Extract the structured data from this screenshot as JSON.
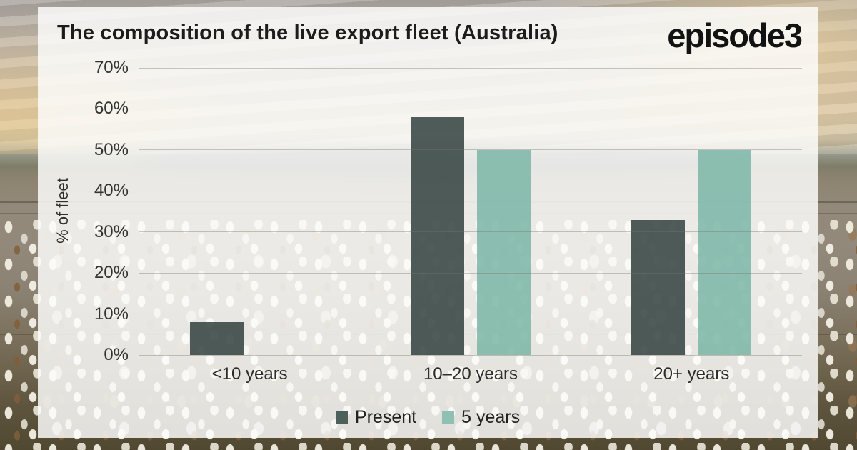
{
  "header": {
    "title": "The composition of the live export fleet (Australia)",
    "logo_text": "episode3"
  },
  "chart_data": {
    "type": "bar",
    "title": "The composition of the live export fleet (Australia)",
    "categories": [
      "<10 years",
      "10–20 years",
      "20+ years"
    ],
    "series": [
      {
        "name": "Present",
        "values": [
          8,
          58,
          33
        ],
        "color": "rgba(44,60,58,0.83)",
        "swatch": "#4e605c"
      },
      {
        "name": "5 years",
        "values": [
          null,
          50,
          50
        ],
        "color": "rgba(122,182,166,0.85)",
        "swatch": "#8ec0b3"
      }
    ],
    "ylabel": "% of fleet",
    "ylim": [
      0,
      70
    ],
    "yticks": [
      {
        "value": 0,
        "label": "0%"
      },
      {
        "value": 10,
        "label": "10%"
      },
      {
        "value": 20,
        "label": "20%"
      },
      {
        "value": 30,
        "label": "30%"
      },
      {
        "value": 40,
        "label": "40%"
      },
      {
        "value": 50,
        "label": "50%"
      },
      {
        "value": 60,
        "label": "60%"
      },
      {
        "value": 70,
        "label": "70%"
      }
    ],
    "grid": true,
    "legend_position": "bottom"
  }
}
